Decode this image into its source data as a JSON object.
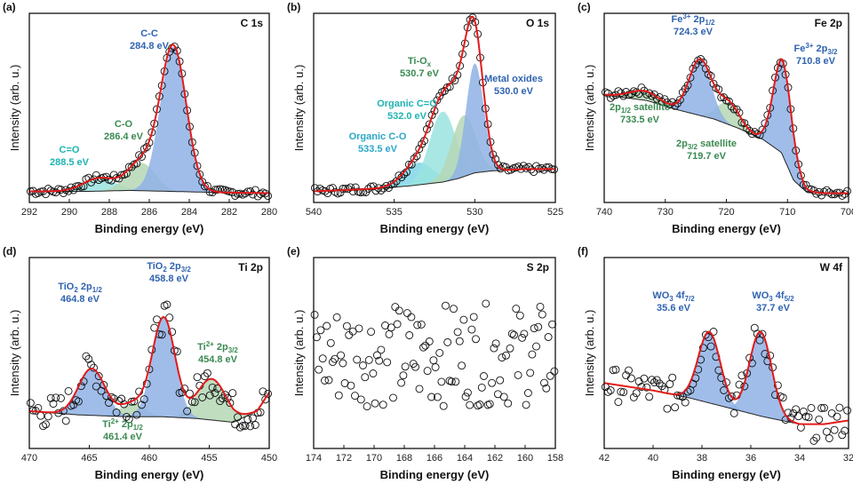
{
  "colors": {
    "fit": "#e21a1a",
    "bg": "#222222",
    "pt": "#111111",
    "blue": "#2f63b0",
    "green": "#3a8a52",
    "teal": "#1fb3b3",
    "fillBlue": "#8fb2e6",
    "fillGreen": "#b5d7b5",
    "fillTeal": "#9ae3e0"
  },
  "chart_data": [
    {
      "type": "line",
      "label": "(a)",
      "title": "C 1s",
      "xlabel": "Binding energy (eV)",
      "ylabel": "Intensity (arb. u.)",
      "xlim": [
        292,
        280
      ],
      "xticks": [
        292,
        290,
        288,
        286,
        284,
        282,
        280
      ],
      "ylim": [
        0,
        1
      ],
      "background": {
        "x": [
          292,
          289,
          287,
          285,
          283,
          280
        ],
        "y": [
          0.06,
          0.06,
          0.065,
          0.06,
          0.055,
          0.05
        ]
      },
      "peaks": [
        {
          "label": "C-C",
          "sub": "284.8 eV",
          "center": 284.8,
          "height": 0.78,
          "width": 0.65,
          "fill": "blue"
        },
        {
          "label": "C-O",
          "sub": "286.4 eV",
          "center": 286.4,
          "height": 0.15,
          "width": 0.7,
          "fill": "green"
        },
        {
          "label": "C=O",
          "sub": "288.5 eV",
          "center": 288.5,
          "height": 0.07,
          "width": 0.8,
          "fill": "teal"
        }
      ]
    },
    {
      "type": "line",
      "label": "(b)",
      "title": "O 1s",
      "xlabel": "Binding energy (eV)",
      "ylabel": "Intensity (arb. u.)",
      "xlim": [
        540,
        525
      ],
      "xticks": [
        540,
        535,
        530,
        525
      ],
      "ylim": [
        0,
        1
      ],
      "background": {
        "x": [
          540,
          536,
          534,
          532,
          531,
          530,
          529,
          527,
          525
        ],
        "y": [
          0.06,
          0.075,
          0.09,
          0.11,
          0.13,
          0.16,
          0.17,
          0.18,
          0.18
        ]
      },
      "peaks": [
        {
          "label": "Metal oxides",
          "sub": "530.0 eV",
          "center": 530.0,
          "height": 0.59,
          "width": 0.55,
          "fill": "blue"
        },
        {
          "label": "Ti-Ox",
          "sub": "530.7 eV",
          "center": 530.7,
          "height": 0.33,
          "width": 0.75,
          "fill": "green"
        },
        {
          "label": "Organic C=O",
          "sub": "532.0 eV",
          "center": 532.0,
          "height": 0.38,
          "width": 0.8,
          "fill": "teal"
        },
        {
          "label": "Organic C-O",
          "sub": "533.5 eV",
          "center": 533.5,
          "height": 0.12,
          "width": 0.9,
          "fill": "teal2"
        }
      ]
    },
    {
      "type": "line",
      "label": "(c)",
      "title": "Fe 2p",
      "xlabel": "Binding energy (eV)",
      "ylabel": "Intensity (arb. u.)",
      "xlim": [
        740,
        700
      ],
      "xticks": [
        740,
        730,
        720,
        710,
        700
      ],
      "ylim": [
        0,
        1
      ],
      "background": {
        "x": [
          740,
          733,
          728,
          722,
          718,
          714,
          711,
          709,
          707,
          704,
          700
        ],
        "y": [
          0.58,
          0.55,
          0.5,
          0.45,
          0.4,
          0.34,
          0.27,
          0.12,
          0.06,
          0.05,
          0.05
        ]
      },
      "peaks": [
        {
          "label": "Fe3+ 2p3/2",
          "sub": "710.8 eV",
          "center": 710.8,
          "height": 0.51,
          "width": 1.5,
          "fill": "blue"
        },
        {
          "label": "Fe3+ 2p1/2",
          "sub": "724.3 eV",
          "center": 724.3,
          "height": 0.3,
          "width": 1.8,
          "fill": "blue"
        },
        {
          "label": "2p3/2 satellite",
          "sub": "719.7 eV",
          "center": 719.7,
          "height": 0.12,
          "width": 1.8,
          "fill": "green"
        },
        {
          "label": "2p1/2 satellite",
          "sub": "733.5 eV",
          "center": 733.5,
          "height": 0.05,
          "width": 2.5,
          "fill": "green"
        }
      ]
    },
    {
      "type": "line",
      "label": "(d)",
      "title": "Ti 2p",
      "xlabel": "Binding energy (eV)",
      "ylabel": "Intensity (arb. u.)",
      "xlim": [
        470,
        450
      ],
      "xticks": [
        470,
        465,
        460,
        455,
        450
      ],
      "ylim": [
        0,
        1
      ],
      "background": {
        "x": [
          470,
          466,
          462,
          459,
          456,
          453,
          451,
          450
        ],
        "y": [
          0.2,
          0.18,
          0.17,
          0.17,
          0.16,
          0.14,
          0.2,
          0.3
        ]
      },
      "peaks": [
        {
          "label": "TiO2 2p3/2",
          "sub": "458.8 eV",
          "center": 458.8,
          "height": 0.53,
          "width": 0.95,
          "fill": "blue"
        },
        {
          "label": "TiO2 2p1/2",
          "sub": "464.8 eV",
          "center": 464.8,
          "height": 0.25,
          "width": 1.1,
          "fill": "blue"
        },
        {
          "label": "Ti2+ 2p3/2",
          "sub": "454.8 eV",
          "center": 454.8,
          "height": 0.22,
          "width": 1.2,
          "fill": "green"
        },
        {
          "label": "Ti2+ 2p1/2",
          "sub": "461.4 eV",
          "center": 461.4,
          "height": 0.07,
          "width": 1.0,
          "fill": "green"
        }
      ]
    },
    {
      "type": "scatter",
      "label": "(e)",
      "title": "S 2p",
      "xlabel": "Binding energy (eV)",
      "ylabel": "Intensity (arb. u.)",
      "xlim": [
        174,
        158
      ],
      "xticks": [
        174,
        172,
        170,
        168,
        166,
        164,
        162,
        160,
        158
      ],
      "ylim": [
        0,
        1
      ],
      "background": {
        "x": [],
        "y": []
      },
      "peaks": []
    },
    {
      "type": "line",
      "label": "(f)",
      "title": "W 4f",
      "xlabel": "Binding energy (eV)",
      "ylabel": "Intensity (arb. u.)",
      "xlim": [
        42,
        32
      ],
      "xticks": [
        42,
        40,
        38,
        36,
        34,
        32
      ],
      "ylim": [
        0,
        1
      ],
      "background": {
        "x": [
          42,
          40,
          38.5,
          37,
          35.5,
          34,
          33,
          32
        ],
        "y": [
          0.35,
          0.31,
          0.27,
          0.22,
          0.17,
          0.13,
          0.13,
          0.15
        ]
      },
      "peaks": [
        {
          "label": "WO3 4f5/2",
          "sub": "37.7 eV",
          "center": 37.7,
          "height": 0.38,
          "width": 0.45,
          "fill": "blue"
        },
        {
          "label": "WO3 4f7/2",
          "sub": "35.6 eV",
          "center": 35.6,
          "height": 0.45,
          "width": 0.45,
          "fill": "blue"
        }
      ]
    }
  ]
}
